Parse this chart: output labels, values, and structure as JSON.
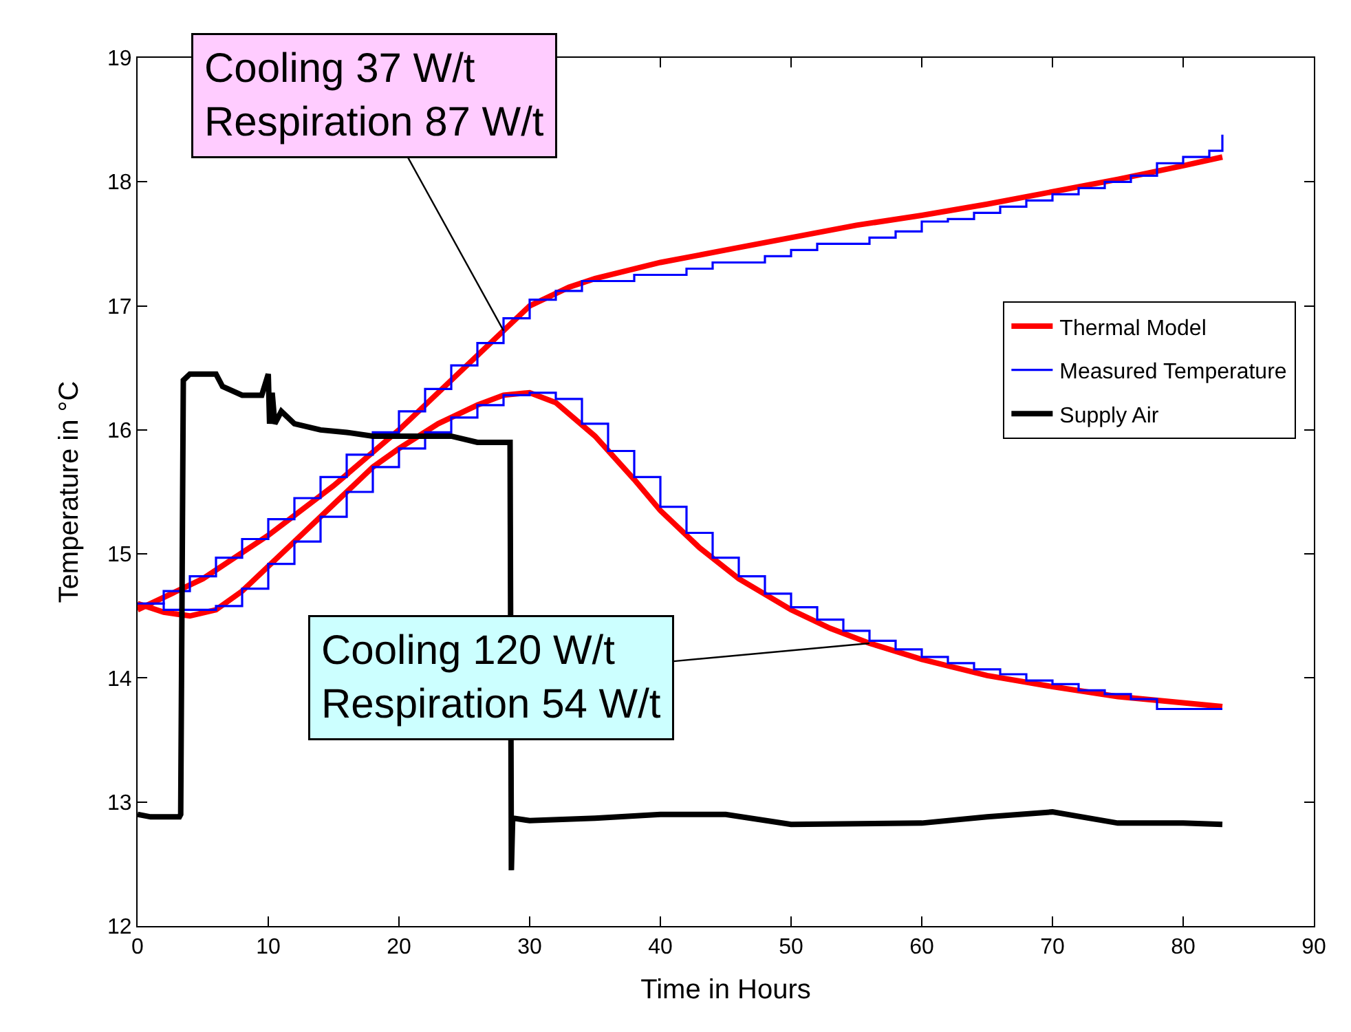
{
  "chart_data": {
    "type": "line",
    "xlabel": "Time in Hours",
    "ylabel": "Temperature in °C",
    "xlim": [
      0,
      90
    ],
    "xticks": [
      0,
      10,
      20,
      30,
      40,
      50,
      60,
      70,
      80,
      90
    ],
    "ylim": [
      12,
      19
    ],
    "yticks": [
      12,
      13,
      14,
      15,
      16,
      17,
      18,
      19
    ],
    "grid": false,
    "legend": "right",
    "marker": "none",
    "series": [
      {
        "name": "Thermal Model",
        "color": "#ff0000",
        "x": [
          0,
          5,
          10,
          15,
          20,
          25,
          28,
          30,
          33,
          35,
          40,
          45,
          50,
          55,
          60,
          65,
          70,
          75,
          80,
          83
        ],
        "values": [
          14.55,
          14.8,
          15.15,
          15.55,
          16.0,
          16.5,
          16.8,
          17.0,
          17.15,
          17.22,
          17.35,
          17.45,
          17.55,
          17.65,
          17.73,
          17.82,
          17.92,
          18.02,
          18.13,
          18.2
        ]
      },
      {
        "name": "Measured Temperature",
        "type": "step",
        "color": "#0000ff",
        "x": [
          0,
          2,
          4,
          6,
          8,
          10,
          12,
          14,
          16,
          18,
          20,
          22,
          24,
          26,
          28,
          30,
          32,
          34,
          36,
          38,
          40,
          42,
          44,
          46,
          48,
          50,
          52,
          54,
          56,
          58,
          60,
          62,
          64,
          66,
          68,
          70,
          72,
          74,
          76,
          78,
          80,
          82,
          83
        ],
        "values": [
          14.6,
          14.7,
          14.82,
          14.97,
          15.12,
          15.28,
          15.45,
          15.62,
          15.8,
          15.98,
          16.15,
          16.33,
          16.52,
          16.7,
          16.9,
          17.05,
          17.12,
          17.2,
          17.2,
          17.25,
          17.25,
          17.3,
          17.35,
          17.35,
          17.4,
          17.45,
          17.5,
          17.5,
          17.55,
          17.6,
          17.68,
          17.7,
          17.75,
          17.8,
          17.85,
          17.9,
          17.95,
          18.0,
          18.05,
          18.15,
          18.2,
          18.25,
          18.38
        ]
      },
      {
        "color": "#ff0000",
        "x": [
          0,
          2,
          4,
          6,
          8,
          10,
          12,
          15,
          18,
          20,
          23,
          26,
          28,
          30,
          32,
          35,
          38,
          40,
          43,
          46,
          50,
          53,
          56,
          60,
          65,
          70,
          75,
          80,
          83
        ],
        "values": [
          14.6,
          14.53,
          14.5,
          14.55,
          14.7,
          14.9,
          15.1,
          15.4,
          15.7,
          15.85,
          16.05,
          16.2,
          16.28,
          16.3,
          16.22,
          15.95,
          15.6,
          15.35,
          15.05,
          14.8,
          14.55,
          14.4,
          14.28,
          14.15,
          14.02,
          13.93,
          13.85,
          13.8,
          13.77
        ]
      },
      {
        "type": "step",
        "color": "#0000ff",
        "x": [
          0,
          2,
          4,
          6,
          8,
          10,
          12,
          14,
          16,
          18,
          20,
          22,
          24,
          26,
          28,
          30,
          32,
          34,
          36,
          38,
          40,
          42,
          44,
          46,
          48,
          50,
          52,
          54,
          56,
          58,
          60,
          62,
          64,
          66,
          68,
          70,
          72,
          74,
          76,
          78,
          80,
          83
        ],
        "values": [
          14.6,
          14.55,
          14.55,
          14.58,
          14.72,
          14.92,
          15.1,
          15.3,
          15.5,
          15.7,
          15.85,
          15.98,
          16.1,
          16.2,
          16.28,
          16.3,
          16.25,
          16.05,
          15.83,
          15.62,
          15.38,
          15.17,
          14.97,
          14.82,
          14.68,
          14.57,
          14.47,
          14.38,
          14.3,
          14.23,
          14.17,
          14.12,
          14.07,
          14.03,
          13.98,
          13.95,
          13.9,
          13.87,
          13.83,
          13.75,
          13.75,
          13.75
        ]
      },
      {
        "name": "Supply Air",
        "color": "#000000",
        "x": [
          0,
          1,
          3.2,
          3.3,
          3.5,
          4,
          6,
          6.5,
          8,
          9.5,
          10,
          10.1,
          10.3,
          10.5,
          11,
          12,
          14,
          16,
          18,
          20,
          24,
          26,
          28.5,
          28.6,
          28.7,
          30,
          35,
          40,
          45,
          50,
          60,
          65,
          70,
          75,
          80,
          83
        ],
        "values": [
          12.9,
          12.88,
          12.88,
          12.9,
          16.4,
          16.45,
          16.45,
          16.35,
          16.28,
          16.28,
          16.45,
          16.05,
          16.3,
          16.05,
          16.15,
          16.05,
          16.0,
          15.98,
          15.95,
          15.95,
          15.95,
          15.9,
          15.9,
          12.45,
          12.87,
          12.85,
          12.87,
          12.9,
          12.9,
          12.82,
          12.83,
          12.88,
          12.92,
          12.83,
          12.83,
          12.82
        ]
      }
    ],
    "annotations": [
      {
        "text": "Cooling 37 W/t\nRespiration 87 W/t",
        "x": 28,
        "y": 16.8
      },
      {
        "text": "Cooling 120 W/t\nRespiration 54 W/t",
        "x": 56,
        "y": 14.28
      }
    ]
  }
}
